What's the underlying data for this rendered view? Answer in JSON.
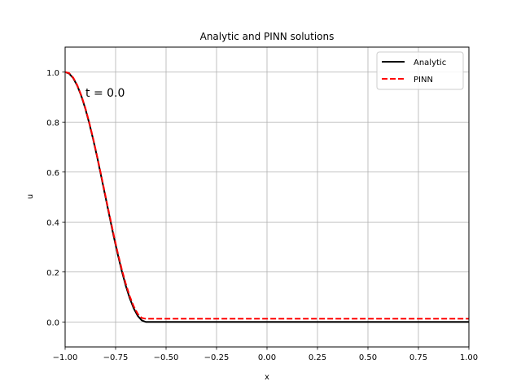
{
  "chart_data": {
    "type": "line",
    "title": "Analytic and PINN solutions",
    "xlabel": "x",
    "ylabel": "u",
    "xlim": [
      -1.0,
      1.0
    ],
    "ylim": [
      -0.1,
      1.1
    ],
    "xticks": [
      -1.0,
      -0.75,
      -0.5,
      -0.25,
      0.0,
      0.25,
      0.5,
      0.75,
      1.0
    ],
    "xtick_labels": [
      "−1.00",
      "−0.75",
      "−0.50",
      "−0.25",
      "0.00",
      "0.25",
      "0.50",
      "0.75",
      "1.00"
    ],
    "yticks": [
      0.0,
      0.2,
      0.4,
      0.6,
      0.8,
      1.0
    ],
    "ytick_labels": [
      "0.0",
      "0.2",
      "0.4",
      "0.6",
      "0.8",
      "1.0"
    ],
    "grid": true,
    "legend": "top-right",
    "annotation": "t = 0.0",
    "series": [
      {
        "name": "Analytic",
        "color": "#000000",
        "style": "solid",
        "x": [
          -1.0,
          -0.98,
          -0.96,
          -0.94,
          -0.92,
          -0.9,
          -0.88,
          -0.86,
          -0.84,
          -0.82,
          -0.8,
          -0.78,
          -0.76,
          -0.74,
          -0.72,
          -0.7,
          -0.68,
          -0.66,
          -0.64,
          -0.62,
          -0.6,
          -0.55,
          -0.5,
          -0.25,
          0.0,
          0.25,
          0.5,
          0.75,
          1.0
        ],
        "y": [
          1.0,
          0.994,
          0.976,
          0.946,
          0.905,
          0.854,
          0.794,
          0.727,
          0.655,
          0.578,
          0.5,
          0.422,
          0.345,
          0.273,
          0.206,
          0.146,
          0.095,
          0.054,
          0.024,
          0.006,
          0.0,
          0.0,
          0.0,
          0.0,
          0.0,
          0.0,
          0.0,
          0.0,
          0.0
        ]
      },
      {
        "name": "PINN",
        "color": "#ff0000",
        "style": "dashed",
        "x": [
          -1.0,
          -0.98,
          -0.96,
          -0.94,
          -0.92,
          -0.9,
          -0.88,
          -0.86,
          -0.84,
          -0.82,
          -0.8,
          -0.78,
          -0.76,
          -0.74,
          -0.72,
          -0.7,
          -0.68,
          -0.66,
          -0.64,
          -0.62,
          -0.6,
          -0.55,
          -0.5,
          -0.25,
          0.0,
          0.25,
          0.5,
          0.75,
          1.0
        ],
        "y": [
          1.0,
          0.996,
          0.978,
          0.948,
          0.907,
          0.857,
          0.797,
          0.73,
          0.658,
          0.582,
          0.504,
          0.427,
          0.351,
          0.279,
          0.213,
          0.154,
          0.103,
          0.062,
          0.032,
          0.016,
          0.013,
          0.013,
          0.013,
          0.013,
          0.013,
          0.013,
          0.013,
          0.013,
          0.013
        ]
      }
    ]
  }
}
